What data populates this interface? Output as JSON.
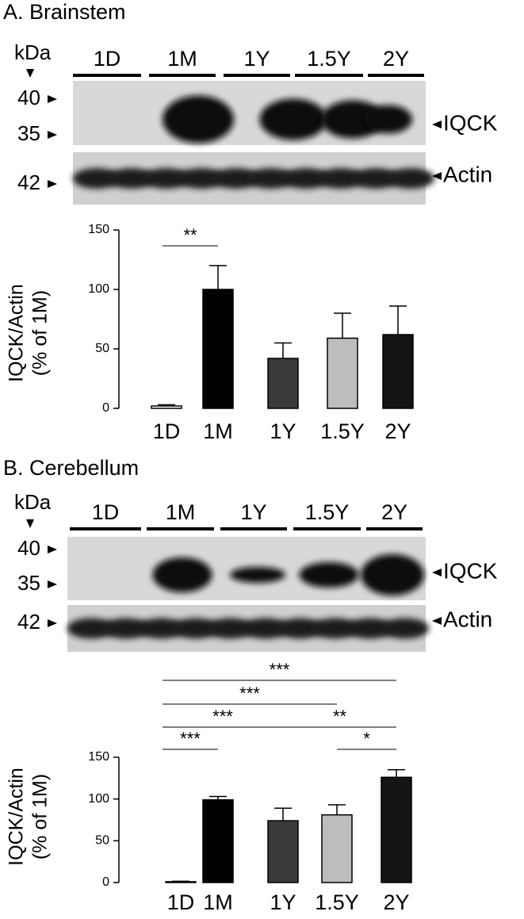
{
  "chart_data": [
    {
      "type": "bar",
      "title": "A. Brainstem",
      "blot": {
        "unit": "kDa",
        "markers": [
          40,
          35,
          42
        ],
        "lanes": [
          "1D",
          "1M",
          "1Y",
          "1.5Y",
          "2Y"
        ],
        "bands": [
          "IQCK",
          "Actin"
        ]
      },
      "ylabel": [
        "IQCK/Actin",
        "(% of 1M)"
      ],
      "categories": [
        "1D",
        "1M",
        "1Y",
        "1.5Y",
        "2Y"
      ],
      "values": [
        2,
        100,
        42,
        59,
        62
      ],
      "errors": [
        1,
        20,
        13,
        21,
        24
      ],
      "colors": [
        "#ffffff",
        "#000000",
        "#3a3a3a",
        "#bdbdbd",
        "#141414"
      ],
      "ylim": [
        0,
        150
      ],
      "yticks": [
        0,
        50,
        100,
        150
      ],
      "significance": [
        {
          "from": "1D",
          "to": "1M",
          "label": "**"
        }
      ]
    },
    {
      "type": "bar",
      "title": "B. Cerebellum",
      "blot": {
        "unit": "kDa",
        "markers": [
          40,
          35,
          42
        ],
        "lanes": [
          "1D",
          "1M",
          "1Y",
          "1.5Y",
          "2Y"
        ],
        "bands": [
          "IQCK",
          "Actin"
        ]
      },
      "ylabel": [
        "IQCK/Actin",
        "(% of 1M)"
      ],
      "categories": [
        "1D",
        "1M",
        "1Y",
        "1.5Y",
        "2Y"
      ],
      "values": [
        1,
        99,
        74,
        81,
        126
      ],
      "errors": [
        0.5,
        4,
        15,
        12,
        9
      ],
      "colors": [
        "#ffffff",
        "#000000",
        "#3a3a3a",
        "#bdbdbd",
        "#141414"
      ],
      "ylim": [
        0,
        150
      ],
      "yticks": [
        0,
        50,
        100,
        150
      ],
      "significance": [
        {
          "from": "1D",
          "to": "2Y",
          "label": "***"
        },
        {
          "from": "1D",
          "to": "1.5Y",
          "label": "***"
        },
        {
          "from": "1D",
          "to": "1Y",
          "label": "***"
        },
        {
          "from": "1D",
          "to": "1M",
          "label": "***"
        },
        {
          "from": "1Y",
          "to": "2Y",
          "label": "**"
        },
        {
          "from": "1.5Y",
          "to": "2Y",
          "label": "*"
        }
      ]
    }
  ]
}
